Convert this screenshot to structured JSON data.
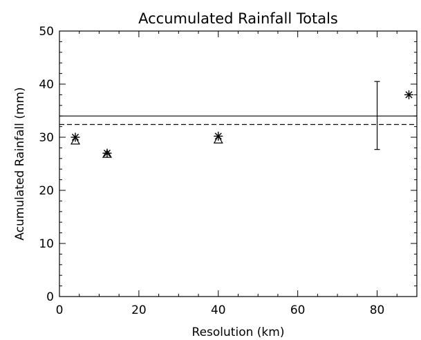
{
  "chart_data": {
    "type": "scatter",
    "title": "Accumulated Rainfall Totals",
    "xlabel": "Resolution (km)",
    "ylabel": "Acumulated Rainfall (mm)",
    "xlim": [
      0,
      90
    ],
    "ylim": [
      0,
      50
    ],
    "xticks": [
      0,
      20,
      40,
      60,
      80
    ],
    "yticks": [
      0,
      10,
      20,
      30,
      40,
      50
    ],
    "grid": false,
    "legend": "none",
    "series": [
      {
        "marker": "asterisk",
        "x": [
          4,
          12,
          40,
          88
        ],
        "y": [
          30.0,
          27.0,
          30.2,
          38.0
        ]
      },
      {
        "marker": "triangle",
        "x": [
          4,
          12,
          40
        ],
        "y": [
          29.3,
          26.8,
          29.5
        ]
      }
    ],
    "hlines": [
      {
        "y": 34.0,
        "style": "solid"
      },
      {
        "y": 32.4,
        "style": "dashed"
      }
    ],
    "errorbar": {
      "x": 80,
      "center": 34.0,
      "low": 27.7,
      "high": 40.5
    },
    "colors": {
      "ink": "#000000",
      "background": "#ffffff"
    }
  }
}
